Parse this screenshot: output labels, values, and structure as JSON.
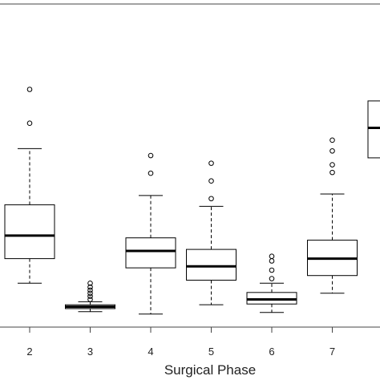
{
  "chart_data": {
    "type": "boxplot",
    "title": "",
    "xlabel": "Surgical Phase",
    "ylabel": "",
    "categories": [
      "2",
      "3",
      "4",
      "5",
      "6",
      "7",
      ""
    ],
    "ylim": [
      0,
      420
    ],
    "grid": false,
    "series": [
      {
        "category": "2",
        "whisker_low": 57.0,
        "q1": 89.0,
        "median": 119.0,
        "q3": 159.0,
        "whisker_high": 232.0,
        "outliers": [
          265.0,
          309.0
        ]
      },
      {
        "category": "3",
        "whisker_low": 20.0,
        "q1": 24.0,
        "median": 26.5,
        "q3": 29.0,
        "whisker_high": 33.0,
        "outliers": [
          36.0,
          40.0,
          44.0,
          48.0,
          52.0,
          57.0
        ]
      },
      {
        "category": "4",
        "whisker_low": 17.0,
        "q1": 77.0,
        "median": 99.0,
        "q3": 116.0,
        "whisker_high": 171.0,
        "outliers": [
          200.0,
          223.0
        ]
      },
      {
        "category": "5",
        "whisker_low": 29.0,
        "q1": 61.0,
        "median": 79.0,
        "q3": 101.0,
        "whisker_high": 157.0,
        "outliers": [
          167.0,
          190.0,
          213.0
        ]
      },
      {
        "category": "6",
        "whisker_low": 19.0,
        "q1": 30.0,
        "median": 36.0,
        "q3": 45.0,
        "whisker_high": 57.0,
        "outliers": [
          63.0,
          74.0,
          86.0,
          92.0
        ]
      },
      {
        "category": "7",
        "whisker_low": 44.0,
        "q1": 67.0,
        "median": 89.0,
        "q3": 113.0,
        "whisker_high": 173.0,
        "outliers": [
          201.0,
          211.0,
          229.0,
          243.0
        ]
      },
      {
        "category": "",
        "whisker_low": null,
        "q1": 220.0,
        "median": 259.0,
        "q3": 294.0,
        "whisker_high": null,
        "outliers": []
      }
    ]
  }
}
